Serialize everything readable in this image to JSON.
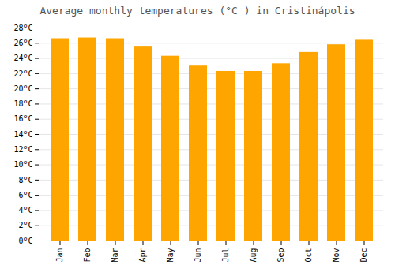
{
  "chart_data": {
    "type": "bar",
    "title": "Average monthly temperatures (°C ) in Cristinápolis",
    "categories": [
      "Jan",
      "Feb",
      "Mar",
      "Apr",
      "May",
      "Jun",
      "Jul",
      "Aug",
      "Sep",
      "Oct",
      "Nov",
      "Dec"
    ],
    "values": [
      26.6,
      26.7,
      26.6,
      25.6,
      24.3,
      23.0,
      22.3,
      22.3,
      23.3,
      24.8,
      25.8,
      26.4
    ],
    "color": "#FFA500",
    "ylim": [
      0,
      28
    ],
    "yticks": [
      {
        "value": 0,
        "label": "0°C"
      },
      {
        "value": 2,
        "label": "2°C"
      },
      {
        "value": 4,
        "label": "4°C"
      },
      {
        "value": 6,
        "label": "6°C"
      },
      {
        "value": 8,
        "label": "8°C"
      },
      {
        "value": 10,
        "label": "10°C"
      },
      {
        "value": 12,
        "label": "12°C"
      },
      {
        "value": 14,
        "label": "14°C"
      },
      {
        "value": 16,
        "label": "16°C"
      },
      {
        "value": 18,
        "label": "18°C"
      },
      {
        "value": 20,
        "label": "20°C"
      },
      {
        "value": 22,
        "label": "22°C"
      },
      {
        "value": 24,
        "label": "24°C"
      },
      {
        "value": 26,
        "label": "26°C"
      },
      {
        "value": 28,
        "label": "28°C"
      }
    ],
    "grid": true
  }
}
